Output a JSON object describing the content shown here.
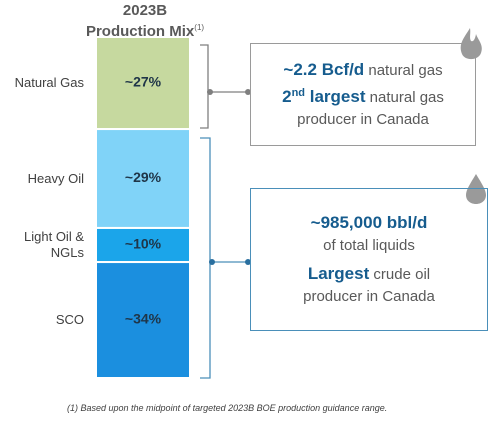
{
  "chart_data": {
    "type": "stacked-bar",
    "title": "2023B",
    "subtitle": "Production Mix",
    "title_note": "(1)",
    "categories": [
      "Natural Gas",
      "Heavy Oil",
      "Light Oil & NGLs",
      "SCO"
    ],
    "values": [
      27,
      29,
      10,
      34
    ],
    "value_labels": [
      "~27%",
      "~29%",
      "~10%",
      "~34%"
    ],
    "colors": [
      "#c6d99f",
      "#80d3f8",
      "#1ba5ea",
      "#1b8fdf"
    ],
    "ylim": [
      0,
      100
    ],
    "callouts": [
      {
        "color": "#9a9a9a",
        "lines": [
          [
            {
              "text": "~2.2 Bcf/d",
              "bold": true
            },
            {
              "text": " natural gas"
            }
          ],
          [
            {
              "text": "2",
              "bold": true
            },
            {
              "text": "nd",
              "bold": true,
              "sup": true
            },
            {
              "text": " largest",
              "bold": true
            },
            {
              "text": " natural gas"
            }
          ],
          [
            {
              "text": "producer in Canada"
            }
          ]
        ]
      },
      {
        "color": "#4a8fb9",
        "lines": [
          [
            {
              "text": "~985,000 bbl/d",
              "bold": true
            }
          ],
          [
            {
              "text": "of total liquids"
            }
          ],
          [
            {
              "text": "Largest",
              "bold": true
            },
            {
              "text": " crude oil"
            }
          ],
          [
            {
              "text": "producer in Canada"
            }
          ]
        ]
      }
    ],
    "footnote": "(1)  Based upon the midpoint of targeted 2023B BOE production guidance range."
  }
}
